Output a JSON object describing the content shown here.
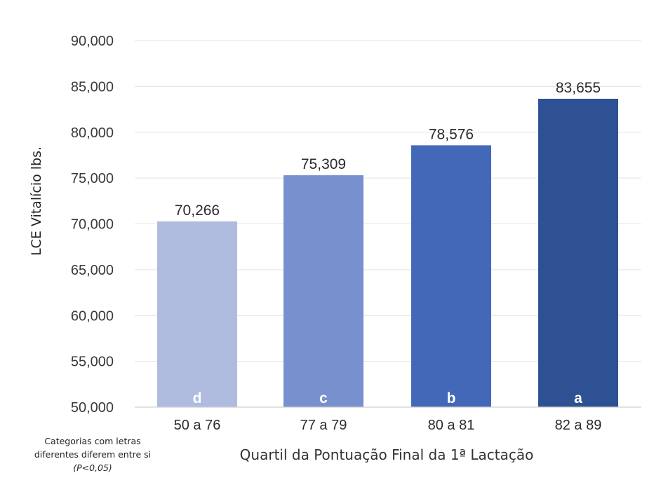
{
  "chart_data": {
    "type": "bar",
    "title": "",
    "xlabel": "Quartil da Pontuação Final da 1ª Lactação",
    "ylabel": "LCE Vitalício lbs.",
    "ylim": [
      50000,
      90000
    ],
    "ytick_labels": [
      "50,000",
      "55,000",
      "60,000",
      "65,000",
      "70,000",
      "75,000",
      "80,000",
      "85,000",
      "90,000"
    ],
    "categories": [
      "50 a 76",
      "77 a 79",
      "80 a 81",
      "82 a 89"
    ],
    "values": [
      70266,
      75309,
      78576,
      83655
    ],
    "data_labels": [
      "70,266",
      "75,309",
      "78,576",
      "83,655"
    ],
    "letters": [
      "d",
      "c",
      "b",
      "a"
    ],
    "colors": [
      "#b0bcdf",
      "#7990cf",
      "#4468b8",
      "#2d5192"
    ],
    "grid": true,
    "legend": "none"
  },
  "note": {
    "line1": "Categorias com letras",
    "line2": "diferentes diferem entre si",
    "line3": "(P<0,05)"
  }
}
